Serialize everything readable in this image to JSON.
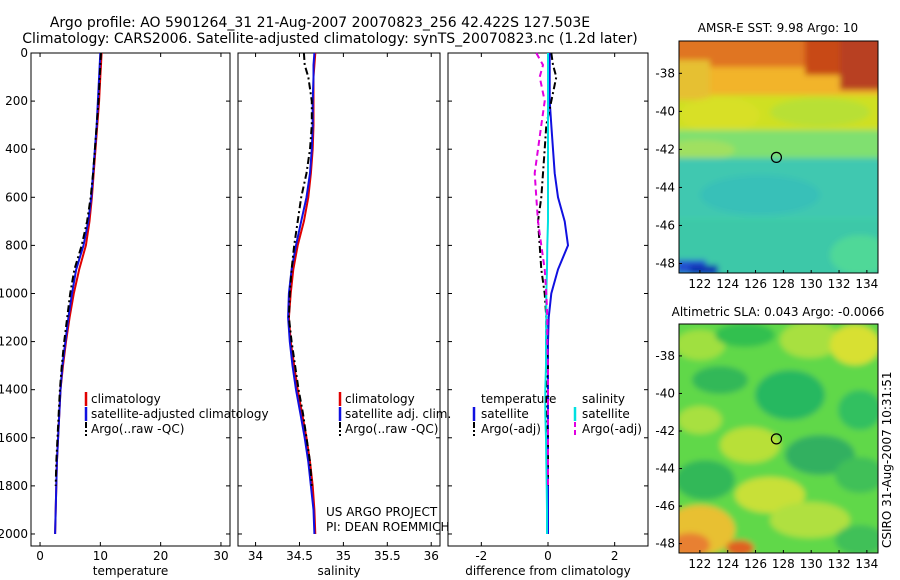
{
  "figure": {
    "title_line1": "Argo profile: AO 5901264_31 21-Aug-2007 20070823_256 42.422S 127.503E",
    "title_line2": "Climatology: CARS2006. Satellite-adjusted climatology: synTS_20070823.nc (1.2d later)",
    "credit_line1": "US ARGO PROJECT",
    "credit_line2": "PI: DEAN ROEMMICH",
    "stamp": "CSIRO 31-Aug-2007 10:31:51"
  },
  "colors": {
    "climatology": "#e00000",
    "satellite": "#1010e0",
    "argo": "#000000",
    "salinity_satellite": "#00e0e0",
    "salinity_argo": "#e000e0"
  },
  "chart_data": [
    {
      "type": "line",
      "name": "temperature-profile",
      "xlabel": "temperature",
      "ylabel": "",
      "xlim": [
        -1.5,
        31.5
      ],
      "ylim": [
        2050,
        0
      ],
      "xticks": [
        0,
        10,
        20,
        30
      ],
      "yticks": [
        0,
        200,
        400,
        600,
        800,
        1000,
        1200,
        1400,
        1600,
        1800,
        2000
      ],
      "legend": [
        "climatology",
        "satellite-adjusted climatology",
        "Argo(..raw -QC)"
      ],
      "series": [
        {
          "name": "climatology",
          "color": "#e00000",
          "dash": "solid",
          "x": [
            10.2,
            10.1,
            10.0,
            9.8,
            9.5,
            9.2,
            8.9,
            8.6,
            8.2,
            7.6,
            6.5,
            5.6,
            4.9,
            4.3,
            3.8,
            3.4,
            3.2,
            3.0,
            2.8,
            2.7,
            2.6,
            2.5
          ],
          "y": [
            0,
            50,
            100,
            200,
            300,
            400,
            500,
            600,
            700,
            800,
            900,
            1000,
            1100,
            1200,
            1300,
            1400,
            1500,
            1600,
            1700,
            1800,
            1900,
            2000
          ]
        },
        {
          "name": "satellite-adjusted climatology",
          "color": "#1010e0",
          "dash": "solid",
          "x": [
            10.0,
            9.9,
            9.8,
            9.6,
            9.4,
            9.1,
            8.8,
            8.5,
            8.0,
            7.2,
            6.0,
            5.3,
            4.7,
            4.2,
            3.7,
            3.4,
            3.2,
            3.0,
            2.8,
            2.7,
            2.6,
            2.5
          ],
          "y": [
            0,
            50,
            100,
            200,
            300,
            400,
            500,
            600,
            700,
            800,
            900,
            1000,
            1100,
            1200,
            1300,
            1400,
            1500,
            1600,
            1700,
            1800,
            1900,
            2000
          ]
        },
        {
          "name": "Argo(..raw -QC)",
          "color": "#000000",
          "dash": "dashdot",
          "x": [
            10.1,
            10.0,
            9.9,
            9.7,
            9.4,
            9.1,
            8.8,
            8.4,
            7.8,
            6.9,
            5.7,
            5.0,
            4.5,
            4.0,
            3.6,
            3.3,
            3.1,
            2.9,
            2.7,
            2.6
          ],
          "y": [
            0,
            50,
            100,
            200,
            300,
            400,
            500,
            600,
            700,
            800,
            900,
            1000,
            1100,
            1200,
            1300,
            1400,
            1500,
            1600,
            1700,
            1800
          ]
        }
      ]
    },
    {
      "type": "line",
      "name": "salinity-profile",
      "xlabel": "salinity",
      "ylabel": "",
      "xlim": [
        33.8,
        36.1
      ],
      "ylim": [
        2050,
        0
      ],
      "xticks": [
        34,
        34.5,
        35,
        35.5,
        36
      ],
      "legend": [
        "climatology",
        "satellite adj. clim.",
        "Argo(..raw -QC)"
      ],
      "series": [
        {
          "name": "climatology",
          "color": "#e00000",
          "dash": "solid",
          "x": [
            34.68,
            34.67,
            34.66,
            34.66,
            34.66,
            34.65,
            34.63,
            34.6,
            34.55,
            34.48,
            34.43,
            34.4,
            34.38,
            34.4,
            34.44,
            34.48,
            34.53,
            34.58,
            34.62,
            34.65,
            34.67,
            34.68
          ],
          "y": [
            0,
            50,
            100,
            200,
            300,
            400,
            500,
            600,
            700,
            800,
            900,
            1000,
            1100,
            1200,
            1300,
            1400,
            1500,
            1600,
            1700,
            1800,
            1900,
            2000
          ]
        },
        {
          "name": "satellite adj. clim.",
          "color": "#1010e0",
          "dash": "solid",
          "x": [
            34.67,
            34.66,
            34.66,
            34.65,
            34.65,
            34.64,
            34.62,
            34.58,
            34.52,
            34.46,
            34.41,
            34.38,
            34.37,
            34.39,
            34.42,
            34.46,
            34.51,
            34.56,
            34.6,
            34.63,
            34.66,
            34.67
          ],
          "y": [
            0,
            50,
            100,
            200,
            300,
            400,
            500,
            600,
            700,
            800,
            900,
            1000,
            1100,
            1200,
            1300,
            1400,
            1500,
            1600,
            1700,
            1800,
            1900,
            2000
          ]
        },
        {
          "name": "Argo(..raw -QC)",
          "color": "#000000",
          "dash": "dashdot",
          "x": [
            34.55,
            34.56,
            34.6,
            34.64,
            34.64,
            34.62,
            34.58,
            34.52,
            34.48,
            34.44,
            34.41,
            34.39,
            34.38,
            34.41,
            34.45,
            34.49,
            34.54,
            34.58,
            34.62,
            34.64
          ],
          "y": [
            0,
            50,
            100,
            200,
            300,
            400,
            500,
            600,
            700,
            800,
            900,
            1000,
            1100,
            1200,
            1300,
            1400,
            1500,
            1600,
            1700,
            1800
          ]
        }
      ]
    },
    {
      "type": "line",
      "name": "difference-profile",
      "xlabel": "difference from climatology",
      "ylabel": "",
      "xlim": [
        -3,
        3
      ],
      "ylim": [
        2050,
        0
      ],
      "xticks": [
        -2,
        0,
        2
      ],
      "legend_groups": [
        {
          "title": "temperature",
          "items": [
            "satellite",
            "Argo(-adj)"
          ]
        },
        {
          "title": "salinity",
          "items": [
            "satellite",
            "Argo(-adj)"
          ]
        }
      ],
      "series": [
        {
          "name": "temperature satellite",
          "color": "#1010e0",
          "dash": "solid",
          "x": [
            0.05,
            0.05,
            0.05,
            0.05,
            0.1,
            0.15,
            0.2,
            0.3,
            0.5,
            0.6,
            0.3,
            0.1,
            0.02,
            0.0,
            0.0,
            0.0,
            0.0,
            0.0,
            0.0,
            0.0,
            0.0,
            0.0
          ],
          "y": [
            0,
            50,
            100,
            200,
            300,
            400,
            500,
            600,
            700,
            800,
            900,
            1000,
            1100,
            1200,
            1300,
            1400,
            1500,
            1600,
            1700,
            1800,
            1900,
            2000
          ]
        },
        {
          "name": "temperature Argo(-adj)",
          "color": "#000000",
          "dash": "dashdot",
          "x": [
            0.1,
            0.15,
            0.25,
            0.1,
            -0.05,
            -0.1,
            -0.15,
            -0.2,
            -0.3,
            -0.25,
            -0.2,
            -0.1,
            -0.05,
            -0.05,
            0.0,
            -0.05,
            -0.05,
            0.0,
            0.0,
            0.0
          ],
          "y": [
            0,
            50,
            100,
            200,
            300,
            400,
            500,
            600,
            700,
            800,
            900,
            1000,
            1100,
            1200,
            1300,
            1400,
            1500,
            1600,
            1700,
            1800
          ]
        },
        {
          "name": "salinity satellite",
          "color": "#00e0e0",
          "dash": "solid",
          "x": [
            0.0,
            0.0,
            0.0,
            0.0,
            0.0,
            0.0,
            0.0,
            0.0,
            0.0,
            -0.02,
            -0.03,
            -0.05,
            -0.05,
            -0.06,
            -0.06,
            -0.08,
            -0.08,
            -0.06,
            -0.05,
            -0.04,
            -0.03,
            -0.03
          ],
          "y": [
            0,
            50,
            100,
            200,
            300,
            400,
            500,
            600,
            700,
            800,
            900,
            1000,
            1100,
            1200,
            1300,
            1400,
            1500,
            1600,
            1700,
            1800,
            1900,
            2000
          ]
        },
        {
          "name": "salinity Argo(-adj)",
          "color": "#e000e0",
          "dash": "dashed",
          "x": [
            -0.35,
            -0.15,
            -0.25,
            -0.1,
            -0.2,
            -0.3,
            -0.4,
            -0.35,
            -0.3,
            -0.2,
            -0.1,
            -0.05,
            -0.02,
            -0.02,
            0.0,
            0.0,
            0.0,
            0.0,
            0.0,
            0.0
          ],
          "y": [
            0,
            50,
            100,
            200,
            300,
            400,
            500,
            600,
            700,
            800,
            900,
            1000,
            1100,
            1200,
            1300,
            1400,
            1500,
            1600,
            1700,
            1800
          ]
        }
      ]
    },
    {
      "type": "heatmap",
      "name": "sst-map",
      "title": "AMSR-E SST: 9.98 Argo: 10",
      "xlim": [
        120.5,
        134.8
      ],
      "ylim": [
        -48.5,
        -36.3
      ],
      "xticks": [
        122,
        124,
        126,
        128,
        130,
        132,
        134
      ],
      "yticks": [
        -38,
        -40,
        -42,
        -44,
        -46,
        -48
      ],
      "marker": {
        "lon": 127.5,
        "lat": -42.42
      }
    },
    {
      "type": "heatmap",
      "name": "sla-map",
      "title": "Altimetric SLA: 0.043 Argo: -0.0066",
      "xlim": [
        120.5,
        134.8
      ],
      "ylim": [
        -48.5,
        -36.3
      ],
      "xticks": [
        122,
        124,
        126,
        128,
        130,
        132,
        134
      ],
      "yticks": [
        -38,
        -40,
        -42,
        -44,
        -46,
        -48
      ],
      "marker": {
        "lon": 127.5,
        "lat": -42.42
      }
    }
  ]
}
